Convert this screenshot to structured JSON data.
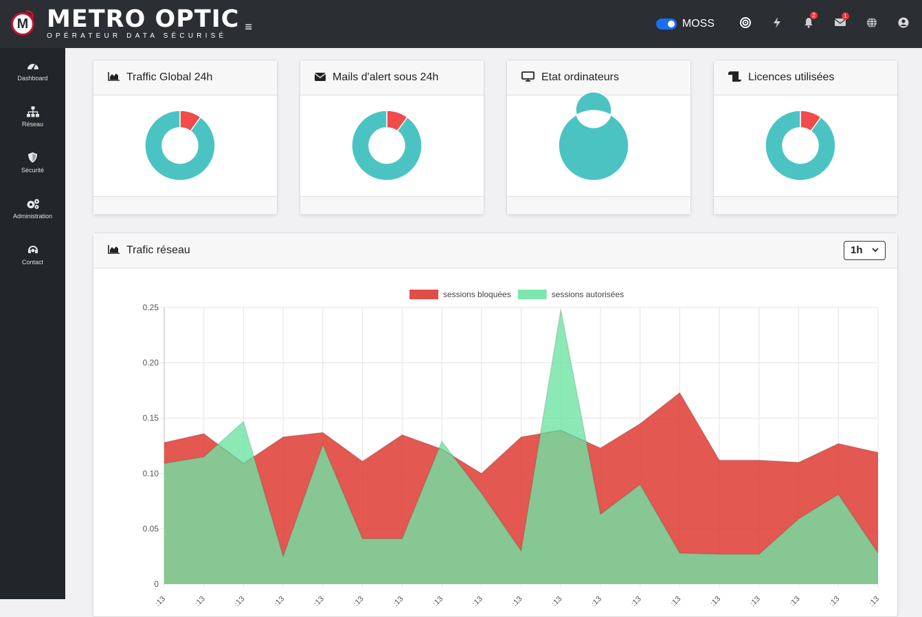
{
  "brand": {
    "badge_letter": "M",
    "title": "METRO OPTIC",
    "subtitle": "OPÉRATEUR DATA SÉCURISÉ"
  },
  "topbar": {
    "toggle_label": "MOSS",
    "notifications_count": "2",
    "messages_count": "1",
    "icons": [
      "target-icon",
      "bolt-icon",
      "bell-icon",
      "envelope-icon",
      "globe-icon",
      "user-icon"
    ]
  },
  "sidebar": {
    "items": [
      {
        "label": "Dashboard",
        "icon": "gauge-icon"
      },
      {
        "label": "Réseau",
        "icon": "sitemap-icon"
      },
      {
        "label": "Sécurité",
        "icon": "shield-icon"
      },
      {
        "label": "Administration",
        "icon": "cogs-icon"
      },
      {
        "label": "Contact",
        "icon": "headset-icon"
      }
    ]
  },
  "cards": [
    {
      "title": "Traffic Global 24h",
      "icon": "area-chart-icon",
      "ratio_red": 0.1,
      "ratio_teal": 0.9
    },
    {
      "title": "Mails d'alert sous 24h",
      "icon": "envelope-icon",
      "ratio_red": 0.1,
      "ratio_teal": 0.9
    },
    {
      "title": "Etat ordinateurs",
      "icon": "monitor-icon",
      "ratio_red": 0.0,
      "ratio_teal": 1.0
    },
    {
      "title": "Licences utilisées",
      "icon": "scroll-icon",
      "ratio_red": 0.1,
      "ratio_teal": 0.9
    }
  ],
  "traffic": {
    "title": "Trafic réseau",
    "range_value": "1h",
    "range_icon": "chevron-down-icon"
  },
  "colors": {
    "red": "#f24b4b",
    "teal": "#4cc3c3",
    "series_red": "#de3b33",
    "series_green": "#6ee3a4"
  },
  "chart_data": {
    "type": "area",
    "y_ticks": [
      "0.25",
      "0.20",
      "0.15",
      "0.10",
      "0.05",
      "0"
    ],
    "ylim": [
      0,
      0.25
    ],
    "x_tick_label": ":13",
    "x_count": 19,
    "legend_position": "top-center",
    "grid": true,
    "series": [
      {
        "name": "sessions bloquées",
        "values": [
          0.128,
          0.136,
          0.109,
          0.133,
          0.137,
          0.111,
          0.135,
          0.122,
          0.1,
          0.133,
          0.139,
          0.123,
          0.145,
          0.173,
          0.112,
          0.112,
          0.11,
          0.127,
          0.119
        ]
      },
      {
        "name": "sessions autorisées",
        "values": [
          0.109,
          0.115,
          0.147,
          0.025,
          0.126,
          0.041,
          0.041,
          0.129,
          0.082,
          0.03,
          0.248,
          0.063,
          0.09,
          0.028,
          0.027,
          0.027,
          0.059,
          0.081,
          0.028
        ]
      }
    ]
  }
}
